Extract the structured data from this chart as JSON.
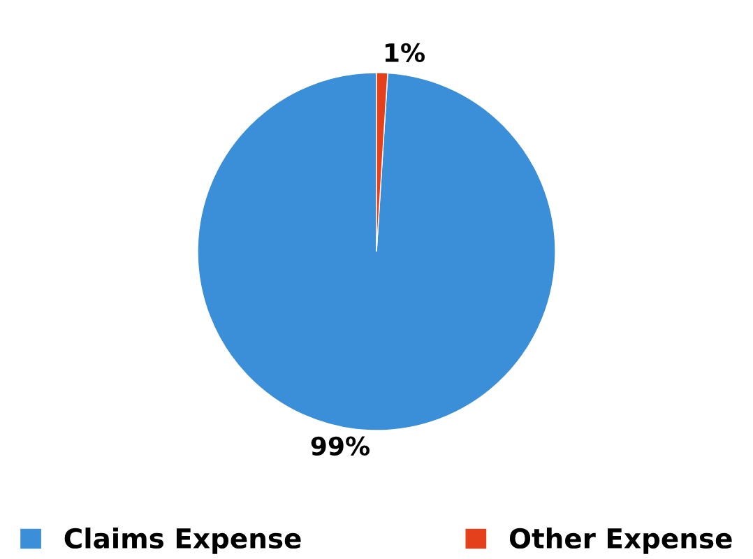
{
  "chart_data": {
    "type": "pie",
    "categories": [
      "Claims Expense",
      "Other Expense"
    ],
    "values": [
      99,
      1
    ],
    "colors": [
      "#3a8fd8",
      "#e5401c"
    ],
    "value_labels": [
      "99%",
      "1%"
    ],
    "legend": "bottom"
  }
}
